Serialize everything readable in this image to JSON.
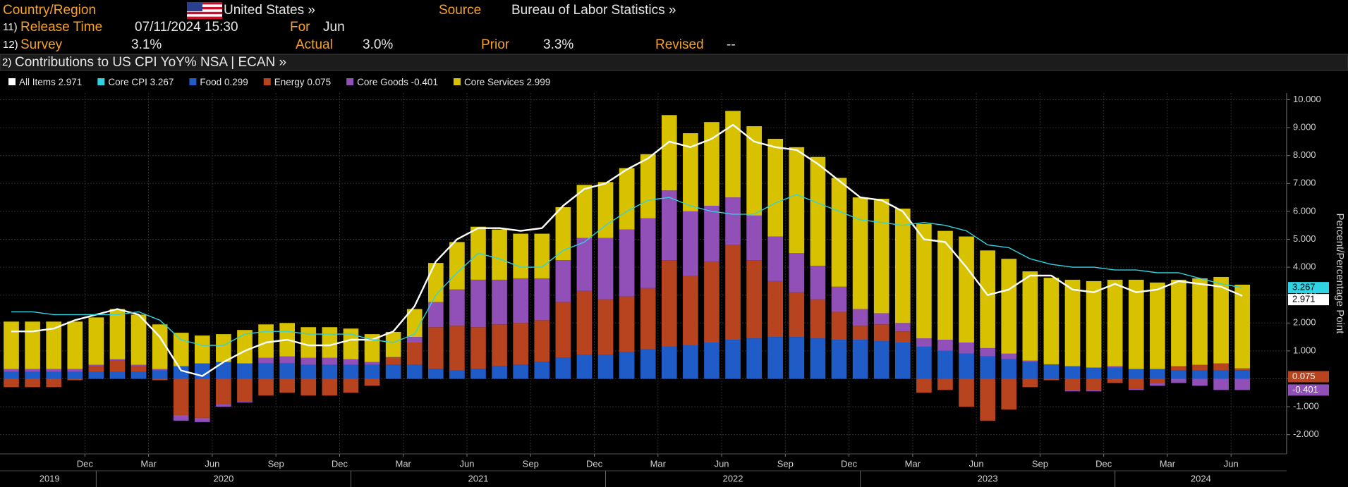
{
  "header": {
    "country_label": "Country/Region",
    "country": "United States »",
    "source_label": "Source",
    "source": "Bureau of Labor Statistics »",
    "release_num": "11)",
    "release_label": "Release Time",
    "release_time": "07/11/2024 15:30",
    "for_label": "For",
    "for_value": "Jun",
    "survey_num": "12)",
    "survey_label": "Survey",
    "survey": "3.1%",
    "actual_label": "Actual",
    "actual": "3.0%",
    "prior_label": "Prior",
    "prior": "3.3%",
    "revised_label": "Revised",
    "revised": "--",
    "title_num": "2)",
    "title": "Contributions to US CPI YoY% NSA | ECAN »"
  },
  "chart_data": {
    "type": "bar",
    "y_axis_label": "Percent/Percentage Point",
    "categories": [
      null,
      null,
      null,
      null,
      "Dec",
      null,
      null,
      "Mar",
      null,
      null,
      "Jun",
      null,
      null,
      "Sep",
      null,
      null,
      "Dec",
      null,
      null,
      "Mar",
      null,
      null,
      "Jun",
      null,
      null,
      "Sep",
      null,
      null,
      "Dec",
      null,
      null,
      "Mar",
      null,
      null,
      "Jun",
      null,
      null,
      "Sep",
      null,
      null,
      "Dec",
      null,
      null,
      "Mar",
      null,
      null,
      "Jun",
      null,
      null,
      "Sep",
      null,
      null,
      "Dec",
      null,
      null,
      "Mar",
      null,
      null,
      "Jun"
    ],
    "years": [
      "2019",
      "2020",
      "2021",
      "2022",
      "2023",
      "2024"
    ],
    "ylim": [
      -2.69,
      10.24
    ],
    "yticks": [
      {
        "value": -2,
        "label": "-2.000"
      },
      {
        "value": -1,
        "label": "-1.000"
      },
      {
        "value": 0,
        "label": "0.000"
      },
      {
        "value": 1,
        "label": "1.000"
      },
      {
        "value": 2,
        "label": "2.000"
      },
      {
        "value": 3,
        "label": "3.000"
      },
      {
        "value": 4,
        "label": "4.000"
      },
      {
        "value": 5,
        "label": "5.000"
      },
      {
        "value": 6,
        "label": "6.000"
      },
      {
        "value": 7,
        "label": "7.000"
      },
      {
        "value": 8,
        "label": "8.000"
      },
      {
        "value": 9,
        "label": "9.000"
      },
      {
        "value": 10,
        "label": "10.000"
      }
    ],
    "grid": true,
    "stacked": true,
    "series": [
      {
        "name": "All Items",
        "type": "line",
        "color": "#ffffff",
        "end_label": true,
        "values": [
          1.7,
          1.7,
          1.8,
          2.1,
          2.3,
          2.5,
          2.3,
          1.5,
          0.3,
          0.1,
          0.6,
          1.0,
          1.3,
          1.4,
          1.2,
          1.2,
          1.4,
          1.4,
          1.7,
          2.6,
          4.2,
          5.0,
          5.4,
          5.4,
          5.3,
          5.4,
          6.2,
          6.8,
          7.0,
          7.5,
          7.9,
          8.5,
          8.3,
          8.6,
          9.1,
          8.5,
          8.3,
          8.2,
          7.7,
          7.1,
          6.5,
          6.4,
          6.0,
          5.0,
          4.9,
          4.0,
          3.0,
          3.2,
          3.7,
          3.7,
          3.2,
          3.1,
          3.4,
          3.1,
          3.2,
          3.5,
          3.4,
          3.3,
          2.971
        ]
      },
      {
        "name": "Core CPI",
        "type": "line",
        "color": "#2fd3e3",
        "end_label": true,
        "values": [
          2.4,
          2.4,
          2.3,
          2.3,
          2.3,
          2.3,
          2.4,
          2.1,
          1.4,
          1.2,
          1.2,
          1.6,
          1.7,
          1.7,
          1.6,
          1.6,
          1.6,
          1.4,
          1.3,
          1.6,
          3.0,
          3.8,
          4.5,
          4.3,
          4.0,
          4.0,
          4.6,
          4.9,
          5.5,
          6.0,
          6.4,
          6.5,
          6.2,
          6.0,
          5.9,
          5.9,
          6.3,
          6.6,
          6.3,
          6.0,
          5.7,
          5.6,
          5.5,
          5.6,
          5.5,
          5.3,
          4.8,
          4.7,
          4.3,
          4.1,
          4.0,
          4.0,
          3.9,
          3.9,
          3.8,
          3.8,
          3.6,
          3.4,
          3.267
        ]
      },
      {
        "name": "Food",
        "type": "bar",
        "color": "#1f5cc8",
        "end_label": false,
        "values": [
          0.25,
          0.25,
          0.25,
          0.25,
          0.25,
          0.25,
          0.25,
          0.3,
          0.45,
          0.55,
          0.6,
          0.55,
          0.55,
          0.55,
          0.5,
          0.5,
          0.5,
          0.5,
          0.5,
          0.5,
          0.35,
          0.3,
          0.35,
          0.45,
          0.5,
          0.6,
          0.75,
          0.85,
          0.85,
          0.95,
          1.05,
          1.15,
          1.2,
          1.3,
          1.4,
          1.45,
          1.5,
          1.5,
          1.45,
          1.4,
          1.4,
          1.35,
          1.3,
          1.15,
          1.0,
          0.9,
          0.8,
          0.7,
          0.6,
          0.5,
          0.45,
          0.4,
          0.4,
          0.35,
          0.35,
          0.3,
          0.3,
          0.3,
          0.299
        ]
      },
      {
        "name": "Energy",
        "type": "bar",
        "color": "#b8431f",
        "end_label": true,
        "values": [
          -0.3,
          -0.3,
          -0.3,
          -0.05,
          0.2,
          0.4,
          0.2,
          -0.05,
          -1.3,
          -1.4,
          -0.9,
          -0.8,
          -0.6,
          -0.5,
          -0.6,
          -0.6,
          -0.5,
          -0.25,
          0.25,
          0.8,
          1.5,
          1.6,
          1.5,
          1.5,
          1.5,
          1.5,
          2.0,
          2.3,
          2.0,
          2.0,
          2.2,
          3.1,
          2.5,
          2.9,
          3.4,
          2.8,
          2.0,
          1.6,
          1.4,
          1.0,
          0.5,
          0.6,
          0.4,
          -0.5,
          -0.4,
          -1.0,
          -1.5,
          -1.1,
          -0.3,
          -0.05,
          -0.4,
          -0.4,
          -0.15,
          -0.35,
          -0.15,
          0.15,
          0.2,
          0.25,
          0.075
        ]
      },
      {
        "name": "Core Goods",
        "type": "bar",
        "color": "#9150b8",
        "end_label": true,
        "values": [
          0.1,
          0.1,
          0.1,
          0.1,
          0.05,
          0.05,
          0.05,
          0.05,
          -0.2,
          -0.15,
          -0.1,
          -0.05,
          0.2,
          0.25,
          0.25,
          0.25,
          0.2,
          0.1,
          0.03,
          0.2,
          0.9,
          1.3,
          1.7,
          1.6,
          1.6,
          1.5,
          1.5,
          1.9,
          2.2,
          2.4,
          2.5,
          2.5,
          2.3,
          2.0,
          1.7,
          1.6,
          1.6,
          1.4,
          1.2,
          0.9,
          0.6,
          0.4,
          0.3,
          0.3,
          0.4,
          0.4,
          0.3,
          0.2,
          0.05,
          0.02,
          -0.05,
          -0.05,
          0.05,
          -0.05,
          -0.1,
          -0.15,
          -0.25,
          -0.4,
          -0.401
        ]
      },
      {
        "name": "Core Services",
        "type": "bar",
        "color": "#d8c200",
        "end_label": false,
        "values": [
          1.7,
          1.7,
          1.7,
          1.7,
          1.7,
          1.8,
          1.8,
          1.6,
          1.2,
          1.0,
          1.0,
          1.2,
          1.2,
          1.2,
          1.1,
          1.1,
          1.1,
          1.0,
          0.9,
          1.0,
          1.4,
          1.7,
          1.9,
          1.8,
          1.6,
          1.6,
          1.9,
          1.9,
          2.0,
          2.2,
          2.3,
          2.7,
          2.8,
          3.0,
          3.1,
          3.2,
          3.5,
          3.8,
          3.9,
          3.9,
          4.0,
          4.1,
          4.1,
          4.1,
          3.9,
          3.8,
          3.5,
          3.4,
          3.2,
          3.1,
          3.1,
          3.1,
          3.1,
          3.2,
          3.1,
          3.1,
          3.1,
          3.1,
          2.999
        ]
      }
    ]
  }
}
